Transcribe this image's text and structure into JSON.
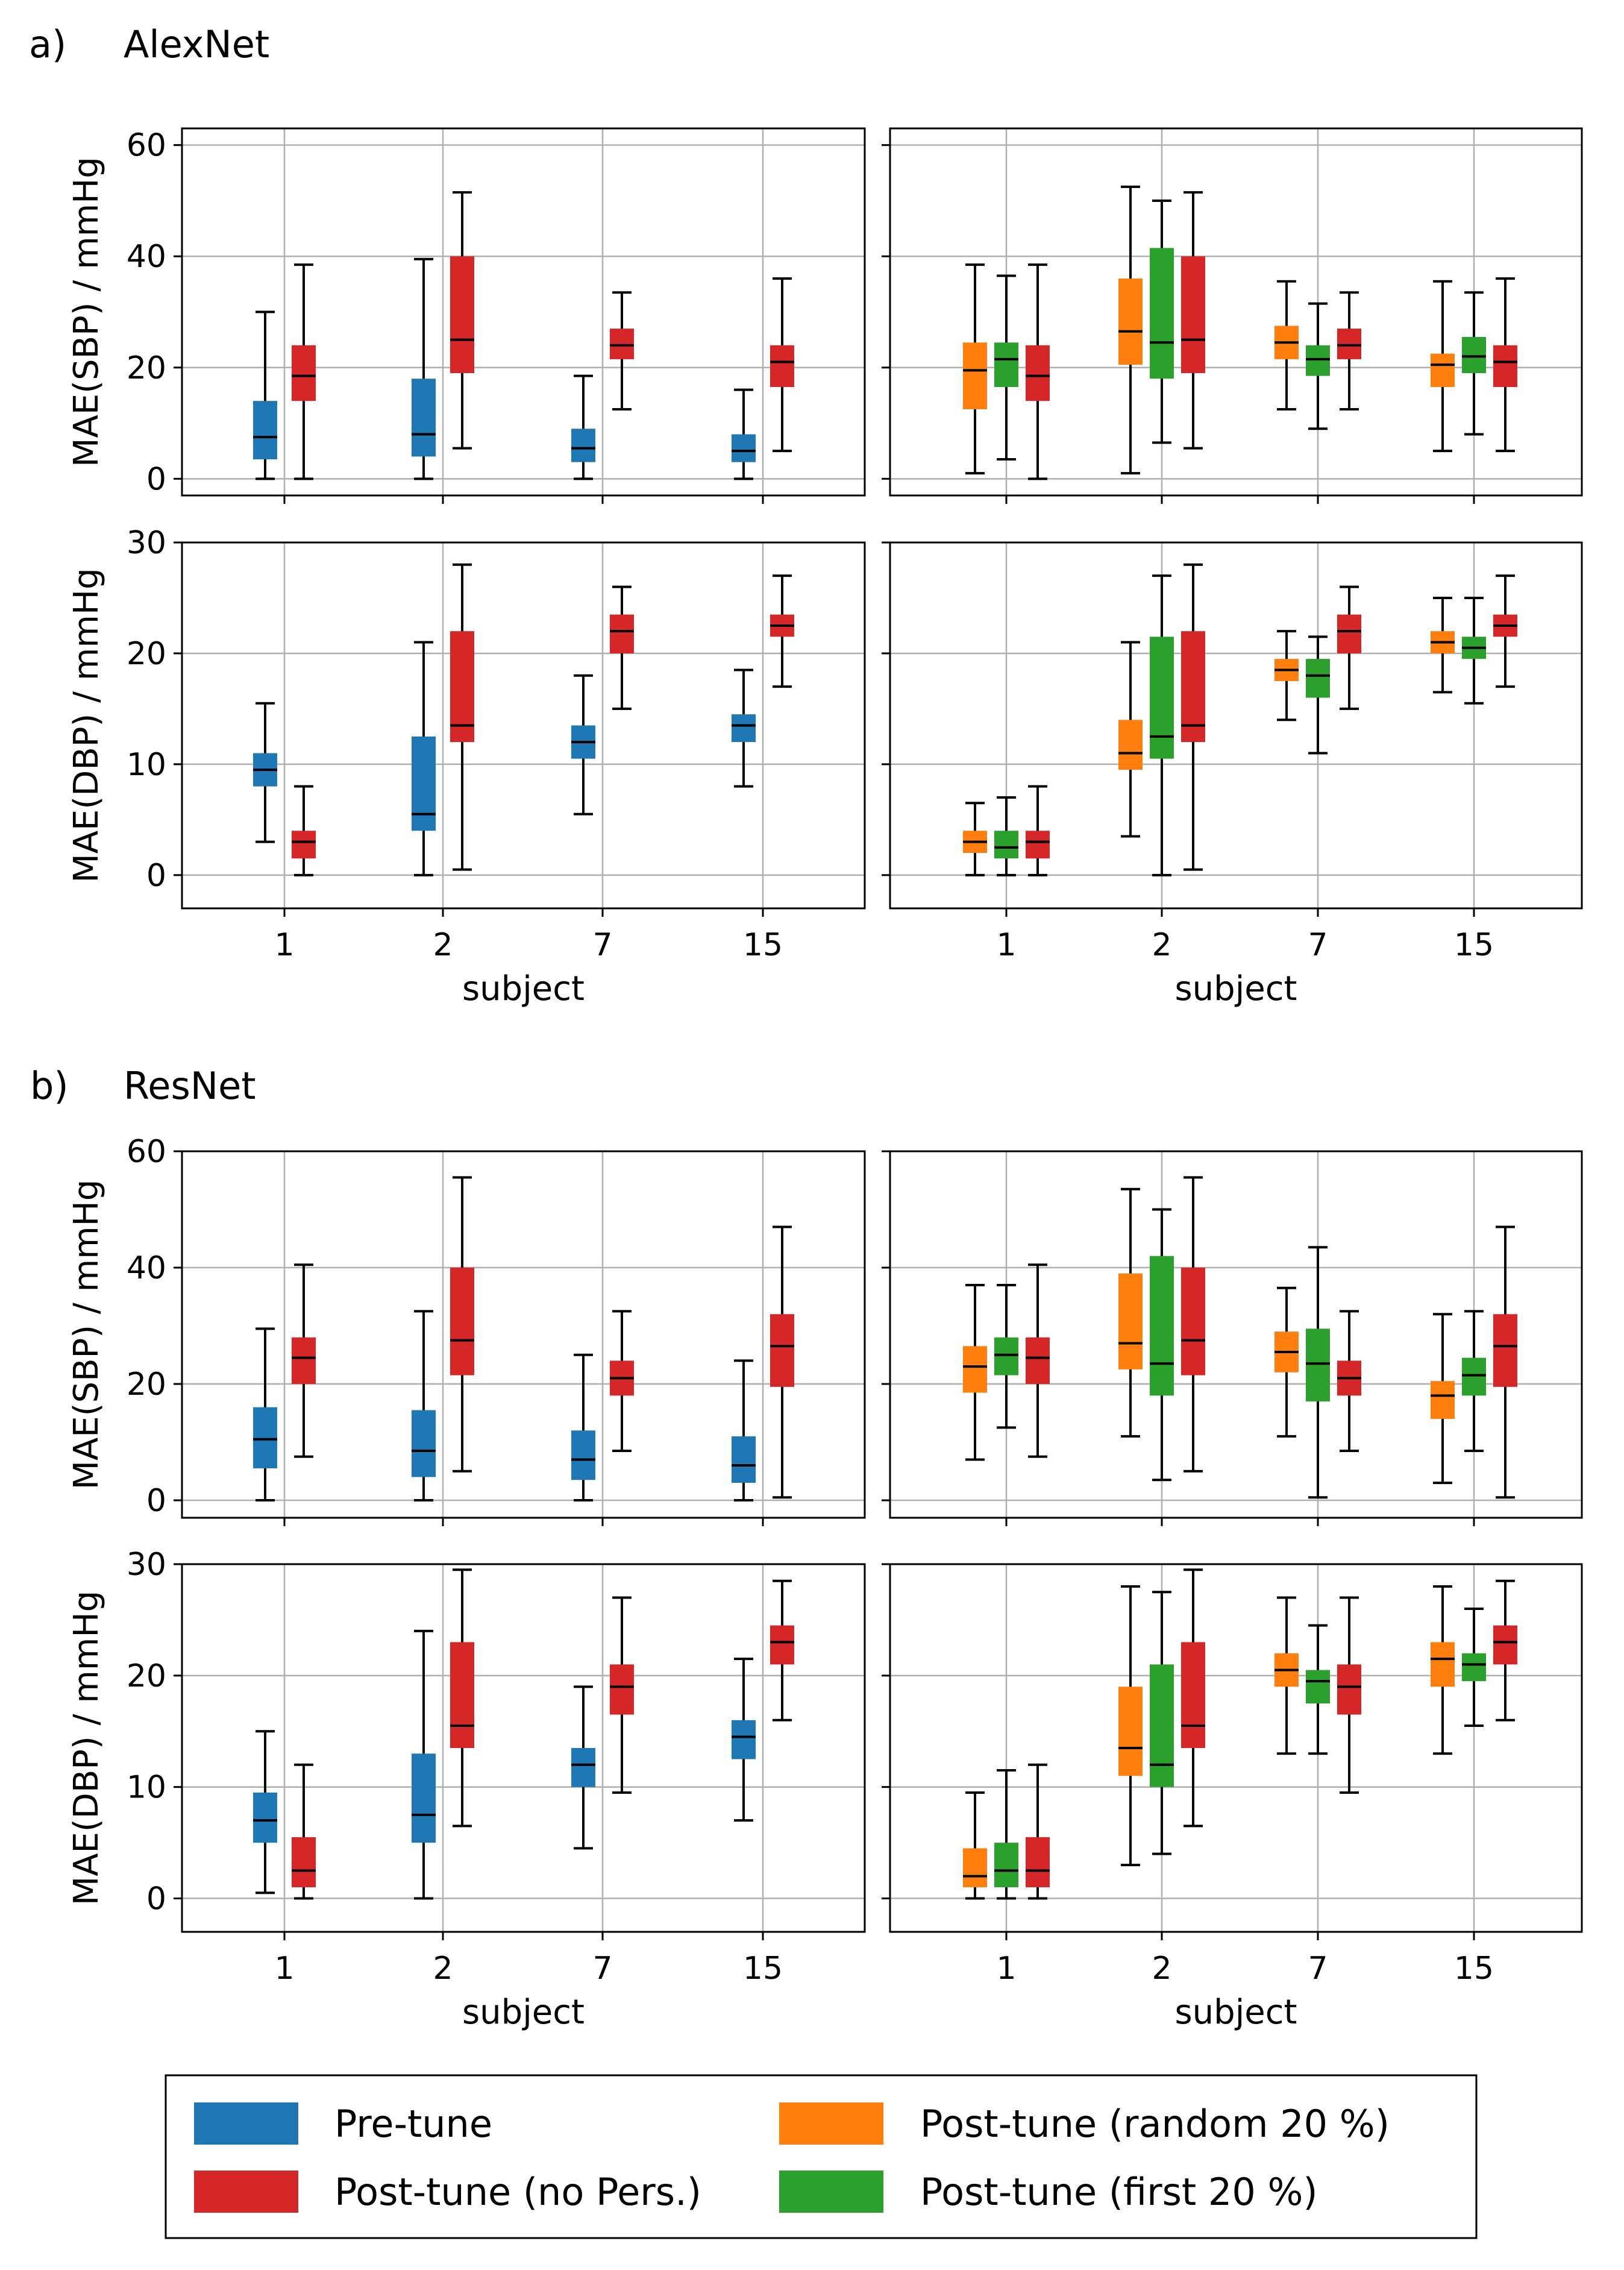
{
  "section_labels": [
    {
      "letter": "a)",
      "name": "AlexNet"
    },
    {
      "letter": "b)",
      "name": "ResNet"
    }
  ],
  "legend": [
    {
      "key": "pre",
      "label": "Pre-tune",
      "color": "#1f77b4"
    },
    {
      "key": "nopers",
      "label": "Post-tune (no Pers.)",
      "color": "#d62728"
    },
    {
      "key": "random",
      "label": "Post-tune (random 20 %)",
      "color": "#ff7f0e"
    },
    {
      "key": "first",
      "label": "Post-tune (first 20 %)",
      "color": "#2ca02c"
    }
  ],
  "chart_data": [
    {
      "type": "box",
      "model": "AlexNet",
      "panel": "left",
      "ylabel": "MAE(SBP) / mmHg",
      "xlabel": "",
      "ylim": [
        -3,
        63
      ],
      "yticks": [
        0,
        20,
        40,
        60
      ],
      "categories": [
        "1",
        "2",
        "7",
        "15"
      ],
      "series": [
        {
          "key": "pre",
          "color": "#1f77b4",
          "boxes": [
            {
              "min": 0,
              "q1": 3.5,
              "median": 7.5,
              "q3": 14,
              "max": 30
            },
            {
              "min": 0,
              "q1": 4,
              "median": 8,
              "q3": 18,
              "max": 39.5
            },
            {
              "min": 0,
              "q1": 3,
              "median": 5.5,
              "q3": 9,
              "max": 18.5
            },
            {
              "min": 0,
              "q1": 3,
              "median": 5,
              "q3": 8,
              "max": 16
            }
          ]
        },
        {
          "key": "nopers",
          "color": "#d62728",
          "boxes": [
            {
              "min": 0,
              "q1": 14,
              "median": 18.5,
              "q3": 24,
              "max": 38.5
            },
            {
              "min": 5.5,
              "q1": 19,
              "median": 25,
              "q3": 40,
              "max": 51.5
            },
            {
              "min": 12.5,
              "q1": 21.5,
              "median": 24,
              "q3": 27,
              "max": 33.5
            },
            {
              "min": 5,
              "q1": 16.5,
              "median": 21,
              "q3": 24,
              "max": 36
            }
          ]
        }
      ]
    },
    {
      "type": "box",
      "model": "AlexNet",
      "panel": "right",
      "ylabel": "",
      "xlabel": "",
      "ylim": [
        -3,
        63
      ],
      "yticks": [
        0,
        20,
        40,
        60
      ],
      "categories": [
        "1",
        "2",
        "7",
        "15"
      ],
      "series": [
        {
          "key": "random",
          "color": "#ff7f0e",
          "boxes": [
            {
              "min": 1,
              "q1": 12.5,
              "median": 19.5,
              "q3": 24.5,
              "max": 38.5
            },
            {
              "min": 1,
              "q1": 20.5,
              "median": 26.5,
              "q3": 36,
              "max": 52.5
            },
            {
              "min": 12.5,
              "q1": 21.5,
              "median": 24.5,
              "q3": 27.5,
              "max": 35.5
            },
            {
              "min": 5,
              "q1": 16.5,
              "median": 20.5,
              "q3": 22.5,
              "max": 35.5
            }
          ]
        },
        {
          "key": "first",
          "color": "#2ca02c",
          "boxes": [
            {
              "min": 3.5,
              "q1": 16.5,
              "median": 21.5,
              "q3": 24.5,
              "max": 36.5
            },
            {
              "min": 6.5,
              "q1": 18,
              "median": 24.5,
              "q3": 41.5,
              "max": 50
            },
            {
              "min": 9,
              "q1": 18.5,
              "median": 21.5,
              "q3": 24,
              "max": 31.5
            },
            {
              "min": 8,
              "q1": 19,
              "median": 22,
              "q3": 25.5,
              "max": 33.5
            }
          ]
        },
        {
          "key": "nopers",
          "color": "#d62728",
          "boxes": [
            {
              "min": 0,
              "q1": 14,
              "median": 18.5,
              "q3": 24,
              "max": 38.5
            },
            {
              "min": 5.5,
              "q1": 19,
              "median": 25,
              "q3": 40,
              "max": 51.5
            },
            {
              "min": 12.5,
              "q1": 21.5,
              "median": 24,
              "q3": 27,
              "max": 33.5
            },
            {
              "min": 5,
              "q1": 16.5,
              "median": 21,
              "q3": 24,
              "max": 36
            }
          ]
        }
      ]
    },
    {
      "type": "box",
      "model": "AlexNet",
      "panel": "left",
      "ylabel": "MAE(DBP) / mmHg",
      "xlabel": "subject",
      "ylim": [
        -3,
        30
      ],
      "yticks": [
        0,
        10,
        20,
        30
      ],
      "categories": [
        "1",
        "2",
        "7",
        "15"
      ],
      "series": [
        {
          "key": "pre",
          "color": "#1f77b4",
          "boxes": [
            {
              "min": 3,
              "q1": 8,
              "median": 9.5,
              "q3": 11,
              "max": 15.5
            },
            {
              "min": 0,
              "q1": 4,
              "median": 5.5,
              "q3": 12.5,
              "max": 21
            },
            {
              "min": 5.5,
              "q1": 10.5,
              "median": 12,
              "q3": 13.5,
              "max": 18
            },
            {
              "min": 8,
              "q1": 12,
              "median": 13.5,
              "q3": 14.5,
              "max": 18.5
            }
          ]
        },
        {
          "key": "nopers",
          "color": "#d62728",
          "boxes": [
            {
              "min": 0,
              "q1": 1.5,
              "median": 3,
              "q3": 4,
              "max": 8
            },
            {
              "min": 0.5,
              "q1": 12,
              "median": 13.5,
              "q3": 22,
              "max": 28
            },
            {
              "min": 15,
              "q1": 20,
              "median": 22,
              "q3": 23.5,
              "max": 26
            },
            {
              "min": 17,
              "q1": 21.5,
              "median": 22.5,
              "q3": 23.5,
              "max": 27
            }
          ]
        }
      ]
    },
    {
      "type": "box",
      "model": "AlexNet",
      "panel": "right",
      "ylabel": "",
      "xlabel": "subject",
      "ylim": [
        -3,
        30
      ],
      "yticks": [
        0,
        10,
        20,
        30
      ],
      "categories": [
        "1",
        "2",
        "7",
        "15"
      ],
      "series": [
        {
          "key": "random",
          "color": "#ff7f0e",
          "boxes": [
            {
              "min": 0,
              "q1": 2,
              "median": 3,
              "q3": 4,
              "max": 6.5
            },
            {
              "min": 3.5,
              "q1": 9.5,
              "median": 11,
              "q3": 14,
              "max": 21
            },
            {
              "min": 14,
              "q1": 17.5,
              "median": 18.5,
              "q3": 19.5,
              "max": 22
            },
            {
              "min": 16.5,
              "q1": 20,
              "median": 21,
              "q3": 22,
              "max": 25
            }
          ]
        },
        {
          "key": "first",
          "color": "#2ca02c",
          "boxes": [
            {
              "min": 0,
              "q1": 1.5,
              "median": 2.5,
              "q3": 4,
              "max": 7
            },
            {
              "min": 0,
              "q1": 10.5,
              "median": 12.5,
              "q3": 21.5,
              "max": 27
            },
            {
              "min": 11,
              "q1": 16,
              "median": 18,
              "q3": 19.5,
              "max": 21.5
            },
            {
              "min": 15.5,
              "q1": 19.5,
              "median": 20.5,
              "q3": 21.5,
              "max": 25
            }
          ]
        },
        {
          "key": "nopers",
          "color": "#d62728",
          "boxes": [
            {
              "min": 0,
              "q1": 1.5,
              "median": 3,
              "q3": 4,
              "max": 8
            },
            {
              "min": 0.5,
              "q1": 12,
              "median": 13.5,
              "q3": 22,
              "max": 28
            },
            {
              "min": 15,
              "q1": 20,
              "median": 22,
              "q3": 23.5,
              "max": 26
            },
            {
              "min": 17,
              "q1": 21.5,
              "median": 22.5,
              "q3": 23.5,
              "max": 27
            }
          ]
        }
      ]
    },
    {
      "type": "box",
      "model": "ResNet",
      "panel": "left",
      "ylabel": "MAE(SBP) / mmHg",
      "xlabel": "",
      "ylim": [
        -3,
        60
      ],
      "yticks": [
        0,
        20,
        40,
        60
      ],
      "categories": [
        "1",
        "2",
        "7",
        "15"
      ],
      "series": [
        {
          "key": "pre",
          "color": "#1f77b4",
          "boxes": [
            {
              "min": 0,
              "q1": 5.5,
              "median": 10.5,
              "q3": 16,
              "max": 29.5
            },
            {
              "min": 0,
              "q1": 4,
              "median": 8.5,
              "q3": 15.5,
              "max": 32.5
            },
            {
              "min": 0,
              "q1": 3.5,
              "median": 7,
              "q3": 12,
              "max": 25
            },
            {
              "min": 0,
              "q1": 3,
              "median": 6,
              "q3": 11,
              "max": 24
            }
          ]
        },
        {
          "key": "nopers",
          "color": "#d62728",
          "boxes": [
            {
              "min": 7.5,
              "q1": 20,
              "median": 24.5,
              "q3": 28,
              "max": 40.5
            },
            {
              "min": 5,
              "q1": 21.5,
              "median": 27.5,
              "q3": 40,
              "max": 55.5
            },
            {
              "min": 8.5,
              "q1": 18,
              "median": 21,
              "q3": 24,
              "max": 32.5
            },
            {
              "min": 0.5,
              "q1": 19.5,
              "median": 26.5,
              "q3": 32,
              "max": 47
            }
          ]
        }
      ]
    },
    {
      "type": "box",
      "model": "ResNet",
      "panel": "right",
      "ylabel": "",
      "xlabel": "",
      "ylim": [
        -3,
        60
      ],
      "yticks": [
        0,
        20,
        40,
        60
      ],
      "categories": [
        "1",
        "2",
        "7",
        "15"
      ],
      "series": [
        {
          "key": "random",
          "color": "#ff7f0e",
          "boxes": [
            {
              "min": 7,
              "q1": 18.5,
              "median": 23,
              "q3": 26.5,
              "max": 37
            },
            {
              "min": 11,
              "q1": 22.5,
              "median": 27,
              "q3": 39,
              "max": 53.5
            },
            {
              "min": 11,
              "q1": 22,
              "median": 25.5,
              "q3": 29,
              "max": 36.5
            },
            {
              "min": 3,
              "q1": 14,
              "median": 18,
              "q3": 20.5,
              "max": 32
            }
          ]
        },
        {
          "key": "first",
          "color": "#2ca02c",
          "boxes": [
            {
              "min": 12.5,
              "q1": 21.5,
              "median": 25,
              "q3": 28,
              "max": 37
            },
            {
              "min": 3.5,
              "q1": 18,
              "median": 23.5,
              "q3": 42,
              "max": 50
            },
            {
              "min": 0.5,
              "q1": 17,
              "median": 23.5,
              "q3": 29.5,
              "max": 43.5
            },
            {
              "min": 8.5,
              "q1": 18,
              "median": 21.5,
              "q3": 24.5,
              "max": 32.5
            }
          ]
        },
        {
          "key": "nopers",
          "color": "#d62728",
          "boxes": [
            {
              "min": 7.5,
              "q1": 20,
              "median": 24.5,
              "q3": 28,
              "max": 40.5
            },
            {
              "min": 5,
              "q1": 21.5,
              "median": 27.5,
              "q3": 40,
              "max": 55.5
            },
            {
              "min": 8.5,
              "q1": 18,
              "median": 21,
              "q3": 24,
              "max": 32.5
            },
            {
              "min": 0.5,
              "q1": 19.5,
              "median": 26.5,
              "q3": 32,
              "max": 47
            }
          ]
        }
      ]
    },
    {
      "type": "box",
      "model": "ResNet",
      "panel": "left",
      "ylabel": "MAE(DBP) / mmHg",
      "xlabel": "subject",
      "ylim": [
        -3,
        30
      ],
      "yticks": [
        0,
        10,
        20,
        30
      ],
      "categories": [
        "1",
        "2",
        "7",
        "15"
      ],
      "series": [
        {
          "key": "pre",
          "color": "#1f77b4",
          "boxes": [
            {
              "min": 0.5,
              "q1": 5,
              "median": 7,
              "q3": 9.5,
              "max": 15
            },
            {
              "min": 0,
              "q1": 5,
              "median": 7.5,
              "q3": 13,
              "max": 24
            },
            {
              "min": 4.5,
              "q1": 10,
              "median": 12,
              "q3": 13.5,
              "max": 19
            },
            {
              "min": 7,
              "q1": 12.5,
              "median": 14.5,
              "q3": 16,
              "max": 21.5
            }
          ]
        },
        {
          "key": "nopers",
          "color": "#d62728",
          "boxes": [
            {
              "min": 0,
              "q1": 1,
              "median": 2.5,
              "q3": 5.5,
              "max": 12
            },
            {
              "min": 6.5,
              "q1": 13.5,
              "median": 15.5,
              "q3": 23,
              "max": 29.5
            },
            {
              "min": 9.5,
              "q1": 16.5,
              "median": 19,
              "q3": 21,
              "max": 27
            },
            {
              "min": 16,
              "q1": 21,
              "median": 23,
              "q3": 24.5,
              "max": 28.5
            }
          ]
        }
      ]
    },
    {
      "type": "box",
      "model": "ResNet",
      "panel": "right",
      "ylabel": "",
      "xlabel": "subject",
      "ylim": [
        -3,
        30
      ],
      "yticks": [
        0,
        10,
        20,
        30
      ],
      "categories": [
        "1",
        "2",
        "7",
        "15"
      ],
      "series": [
        {
          "key": "random",
          "color": "#ff7f0e",
          "boxes": [
            {
              "min": 0,
              "q1": 1,
              "median": 2,
              "q3": 4.5,
              "max": 9.5
            },
            {
              "min": 3,
              "q1": 11,
              "median": 13.5,
              "q3": 19,
              "max": 28
            },
            {
              "min": 13,
              "q1": 19,
              "median": 20.5,
              "q3": 22,
              "max": 27
            },
            {
              "min": 13,
              "q1": 19,
              "median": 21.5,
              "q3": 23,
              "max": 28
            }
          ]
        },
        {
          "key": "first",
          "color": "#2ca02c",
          "boxes": [
            {
              "min": 0,
              "q1": 1,
              "median": 2.5,
              "q3": 5,
              "max": 11.5
            },
            {
              "min": 4,
              "q1": 10,
              "median": 12,
              "q3": 21,
              "max": 27.5
            },
            {
              "min": 13,
              "q1": 17.5,
              "median": 19.5,
              "q3": 20.5,
              "max": 24.5
            },
            {
              "min": 15.5,
              "q1": 19.5,
              "median": 21,
              "q3": 22,
              "max": 26
            }
          ]
        },
        {
          "key": "nopers",
          "color": "#d62728",
          "boxes": [
            {
              "min": 0,
              "q1": 1,
              "median": 2.5,
              "q3": 5.5,
              "max": 12
            },
            {
              "min": 6.5,
              "q1": 13.5,
              "median": 15.5,
              "q3": 23,
              "max": 29.5
            },
            {
              "min": 9.5,
              "q1": 16.5,
              "median": 19,
              "q3": 21,
              "max": 27
            },
            {
              "min": 16,
              "q1": 21,
              "median": 23,
              "q3": 24.5,
              "max": 28.5
            }
          ]
        }
      ]
    }
  ]
}
